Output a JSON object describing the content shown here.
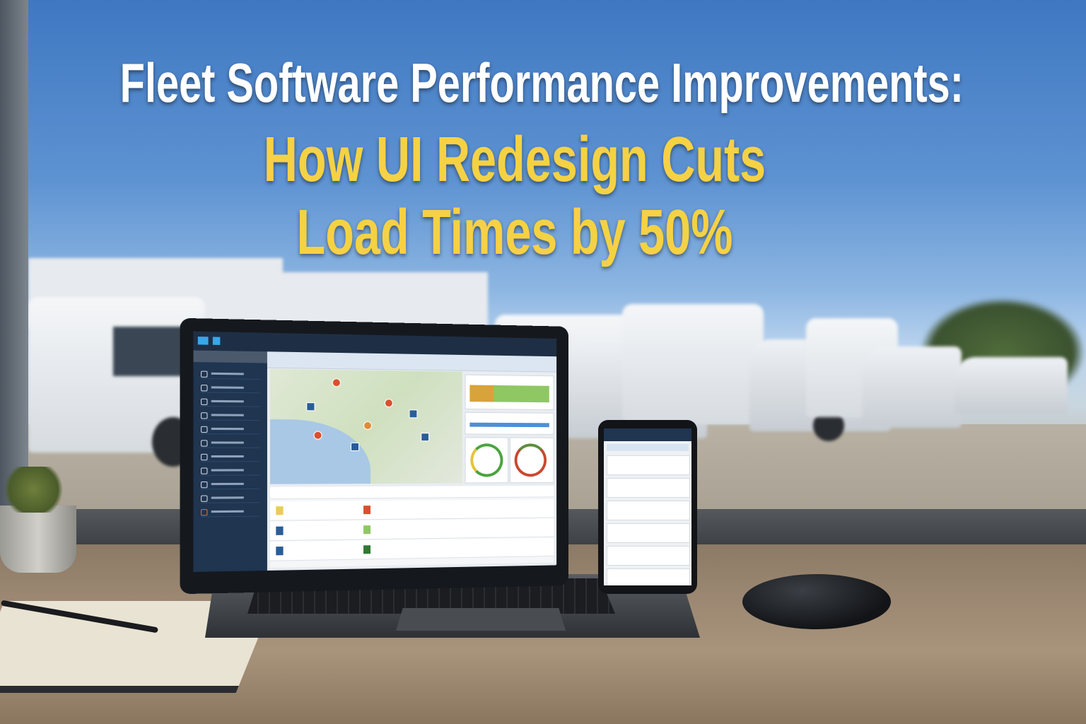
{
  "headline": {
    "line1": "Fleet Software Performance Improvements:",
    "line2": "How UI Redesign Cuts",
    "line3": "Load Times by 50%"
  },
  "colors": {
    "headline_primary": "#ffffff",
    "headline_accent": "#f5d144",
    "sky": "#4a82c8",
    "app_sidebar": "#1f3550"
  },
  "scene": {
    "devices": [
      "laptop",
      "phone",
      "mouse",
      "notebook"
    ]
  }
}
